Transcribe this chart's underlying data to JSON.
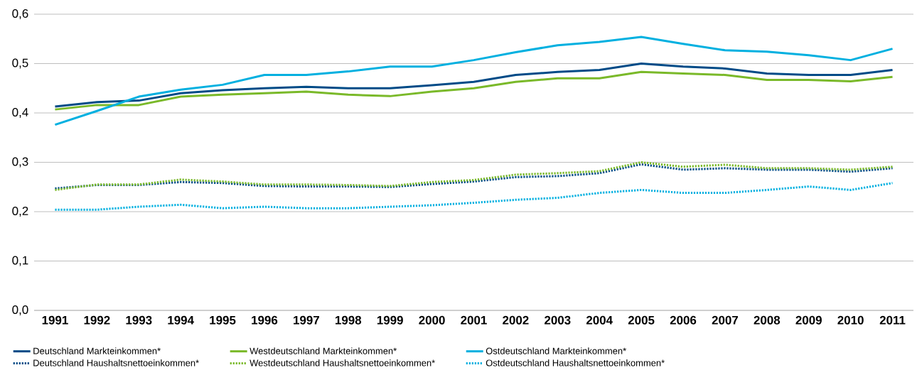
{
  "chart_data": {
    "type": "line",
    "categories": [
      "1991",
      "1992",
      "1993",
      "1994",
      "1995",
      "1996",
      "1997",
      "1998",
      "1999",
      "2000",
      "2001",
      "2002",
      "2003",
      "2004",
      "2005",
      "2006",
      "2007",
      "2008",
      "2009",
      "2010",
      "2011"
    ],
    "series": [
      {
        "name": "Deutschland Markteinkommen*",
        "color": "#004b87",
        "line_style": "solid",
        "values": [
          0.413,
          0.422,
          0.425,
          0.44,
          0.446,
          0.45,
          0.453,
          0.45,
          0.45,
          0.456,
          0.463,
          0.477,
          0.483,
          0.487,
          0.5,
          0.494,
          0.49,
          0.48,
          0.477,
          0.477,
          0.487
        ]
      },
      {
        "name": "Westdeutschland Markteinkommen*",
        "color": "#7ab929",
        "line_style": "solid",
        "values": [
          0.407,
          0.416,
          0.416,
          0.433,
          0.437,
          0.44,
          0.443,
          0.437,
          0.434,
          0.443,
          0.45,
          0.463,
          0.47,
          0.47,
          0.483,
          0.48,
          0.477,
          0.467,
          0.467,
          0.464,
          0.473
        ]
      },
      {
        "name": "Ostdeutschland Markteinkommen*",
        "color": "#00b0e0",
        "line_style": "solid",
        "values": [
          0.376,
          0.404,
          0.433,
          0.447,
          0.457,
          0.477,
          0.477,
          0.484,
          0.494,
          0.494,
          0.507,
          0.523,
          0.537,
          0.544,
          0.554,
          0.54,
          0.527,
          0.524,
          0.517,
          0.507,
          0.53
        ]
      },
      {
        "name": "Deutschland Haushaltsnettoeinkommen*",
        "color": "#004b87",
        "line_style": "dotted",
        "values": [
          0.247,
          0.254,
          0.254,
          0.26,
          0.258,
          0.252,
          0.251,
          0.251,
          0.25,
          0.256,
          0.261,
          0.27,
          0.272,
          0.278,
          0.296,
          0.285,
          0.288,
          0.285,
          0.285,
          0.281,
          0.288
        ]
      },
      {
        "name": "Westdeutschland Haushaltsnettoeinkommen*",
        "color": "#7ab929",
        "line_style": "dotted",
        "values": [
          0.244,
          0.255,
          0.255,
          0.265,
          0.261,
          0.255,
          0.255,
          0.254,
          0.252,
          0.26,
          0.264,
          0.275,
          0.278,
          0.282,
          0.3,
          0.291,
          0.295,
          0.288,
          0.288,
          0.285,
          0.291
        ]
      },
      {
        "name": "Ostdeutschland Haushaltsnettoeinkommen*",
        "color": "#00b0e0",
        "line_style": "dotted",
        "values": [
          0.204,
          0.204,
          0.21,
          0.214,
          0.207,
          0.21,
          0.207,
          0.207,
          0.21,
          0.213,
          0.218,
          0.224,
          0.228,
          0.238,
          0.244,
          0.238,
          0.238,
          0.244,
          0.251,
          0.244,
          0.258
        ]
      }
    ],
    "ylim": [
      0,
      0.6
    ],
    "yticks": [
      {
        "value": 0,
        "label": "0,0"
      },
      {
        "value": 0.1,
        "label": "0,1"
      },
      {
        "value": 0.2,
        "label": "0,2"
      },
      {
        "value": 0.3,
        "label": "0,3"
      },
      {
        "value": 0.4,
        "label": "0,4"
      },
      {
        "value": 0.5,
        "label": "0,5"
      },
      {
        "value": 0.6,
        "label": "0,6"
      }
    ],
    "grid": "y",
    "legend": "bottom",
    "marker": "none"
  }
}
